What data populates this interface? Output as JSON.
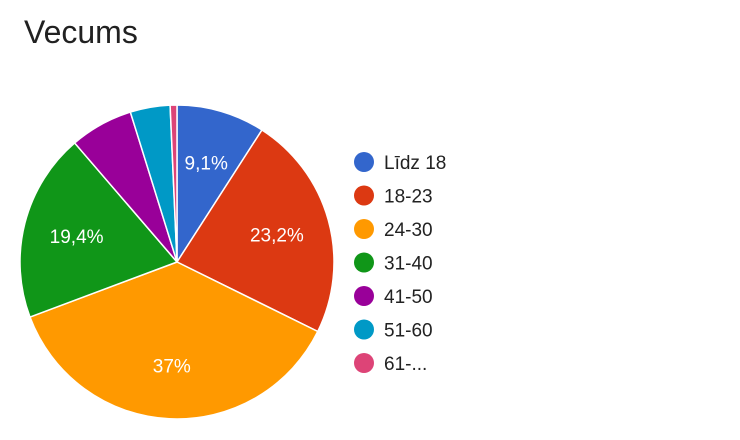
{
  "chart_data": {
    "type": "pie",
    "title": "Vecums",
    "legend_position": "right",
    "start_angle_deg": 90,
    "direction": "clockwise",
    "slices": [
      {
        "label": "Līdz 18",
        "value": 9.1,
        "value_label": "9,1%",
        "color": "#3366cc"
      },
      {
        "label": "18-23",
        "value": 23.2,
        "value_label": "23,2%",
        "color": "#dc3912"
      },
      {
        "label": "24-30",
        "value": 37.0,
        "value_label": "37%",
        "color": "#ff9900"
      },
      {
        "label": "31-40",
        "value": 19.4,
        "value_label": "19,4%",
        "color": "#109618"
      },
      {
        "label": "41-50",
        "value": 6.5,
        "value_label": "",
        "color": "#990099"
      },
      {
        "label": "51-60",
        "value": 4.1,
        "value_label": "",
        "color": "#0099c6"
      },
      {
        "label": "61-...",
        "value": 0.7,
        "value_label": "",
        "color": "#dd4477"
      }
    ]
  }
}
